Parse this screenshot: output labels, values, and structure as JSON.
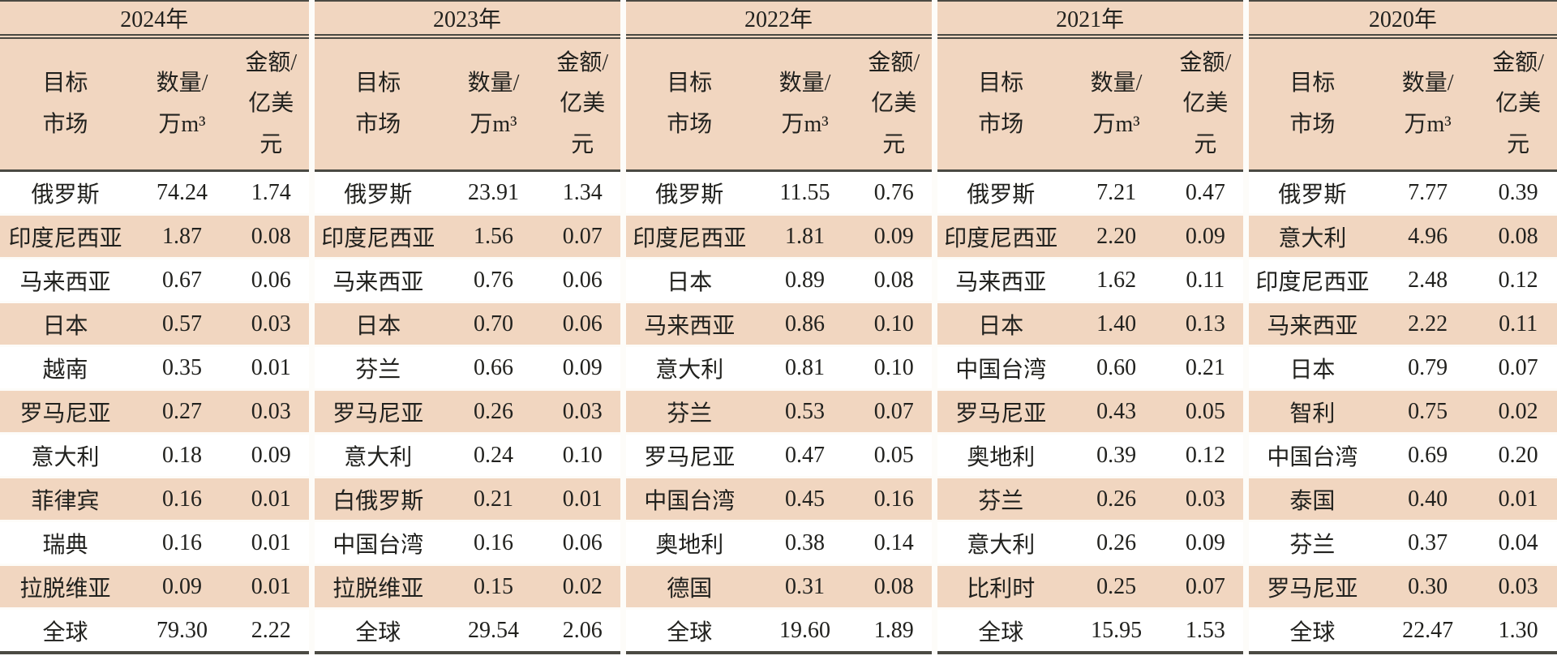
{
  "colors": {
    "stripe_peach": "#f1d6c0",
    "rule_dark": "#4b4a43",
    "row_gutter_white": "#fdfcf9",
    "text": "#21211e"
  },
  "chart_data": {
    "type": "table",
    "years": [
      {
        "label": "2024年",
        "col_headers": {
          "market": "目标\n市场",
          "qty": "数量/\n万m³",
          "amt": "金额/\n亿美\n元"
        },
        "rows": [
          {
            "market": "俄罗斯",
            "qty": "74.24",
            "amt": "1.74"
          },
          {
            "market": "印度尼西亚",
            "qty": "1.87",
            "amt": "0.08"
          },
          {
            "market": "马来西亚",
            "qty": "0.67",
            "amt": "0.06"
          },
          {
            "market": "日本",
            "qty": "0.57",
            "amt": "0.03"
          },
          {
            "market": "越南",
            "qty": "0.35",
            "amt": "0.01"
          },
          {
            "market": "罗马尼亚",
            "qty": "0.27",
            "amt": "0.03"
          },
          {
            "market": "意大利",
            "qty": "0.18",
            "amt": "0.09"
          },
          {
            "market": "菲律宾",
            "qty": "0.16",
            "amt": "0.01"
          },
          {
            "market": "瑞典",
            "qty": "0.16",
            "amt": "0.01"
          },
          {
            "market": "拉脱维亚",
            "qty": "0.09",
            "amt": "0.01"
          },
          {
            "market": "全球",
            "qty": "79.30",
            "amt": "2.22"
          }
        ]
      },
      {
        "label": "2023年",
        "col_headers": {
          "market": "目标\n市场",
          "qty": "数量/\n万m³",
          "amt": "金额/\n亿美\n元"
        },
        "rows": [
          {
            "market": "俄罗斯",
            "qty": "23.91",
            "amt": "1.34"
          },
          {
            "market": "印度尼西亚",
            "qty": "1.56",
            "amt": "0.07"
          },
          {
            "market": "马来西亚",
            "qty": "0.76",
            "amt": "0.06"
          },
          {
            "market": "日本",
            "qty": "0.70",
            "amt": "0.06"
          },
          {
            "market": "芬兰",
            "qty": "0.66",
            "amt": "0.09"
          },
          {
            "market": "罗马尼亚",
            "qty": "0.26",
            "amt": "0.03"
          },
          {
            "market": "意大利",
            "qty": "0.24",
            "amt": "0.10"
          },
          {
            "market": "白俄罗斯",
            "qty": "0.21",
            "amt": "0.01"
          },
          {
            "market": "中国台湾",
            "qty": "0.16",
            "amt": "0.06"
          },
          {
            "market": "拉脱维亚",
            "qty": "0.15",
            "amt": "0.02"
          },
          {
            "market": "全球",
            "qty": "29.54",
            "amt": "2.06"
          }
        ]
      },
      {
        "label": "2022年",
        "col_headers": {
          "market": "目标\n市场",
          "qty": "数量/\n万m³",
          "amt": "金额/\n亿美\n元"
        },
        "rows": [
          {
            "market": "俄罗斯",
            "qty": "11.55",
            "amt": "0.76"
          },
          {
            "market": "印度尼西亚",
            "qty": "1.81",
            "amt": "0.09"
          },
          {
            "market": "日本",
            "qty": "0.89",
            "amt": "0.08"
          },
          {
            "market": "马来西亚",
            "qty": "0.86",
            "amt": "0.10"
          },
          {
            "market": "意大利",
            "qty": "0.81",
            "amt": "0.10"
          },
          {
            "market": "芬兰",
            "qty": "0.53",
            "amt": "0.07"
          },
          {
            "market": "罗马尼亚",
            "qty": "0.47",
            "amt": "0.05"
          },
          {
            "market": "中国台湾",
            "qty": "0.45",
            "amt": "0.16"
          },
          {
            "market": "奥地利",
            "qty": "0.38",
            "amt": "0.14"
          },
          {
            "market": "德国",
            "qty": "0.31",
            "amt": "0.08"
          },
          {
            "market": "全球",
            "qty": "19.60",
            "amt": "1.89"
          }
        ]
      },
      {
        "label": "2021年",
        "col_headers": {
          "market": "目标\n市场",
          "qty": "数量/\n万m³",
          "amt": "金额/\n亿美\n元"
        },
        "rows": [
          {
            "market": "俄罗斯",
            "qty": "7.21",
            "amt": "0.47"
          },
          {
            "market": "印度尼西亚",
            "qty": "2.20",
            "amt": "0.09"
          },
          {
            "market": "马来西亚",
            "qty": "1.62",
            "amt": "0.11"
          },
          {
            "market": "日本",
            "qty": "1.40",
            "amt": "0.13"
          },
          {
            "market": "中国台湾",
            "qty": "0.60",
            "amt": "0.21"
          },
          {
            "market": "罗马尼亚",
            "qty": "0.43",
            "amt": "0.05"
          },
          {
            "market": "奥地利",
            "qty": "0.39",
            "amt": "0.12"
          },
          {
            "market": "芬兰",
            "qty": "0.26",
            "amt": "0.03"
          },
          {
            "market": "意大利",
            "qty": "0.26",
            "amt": "0.09"
          },
          {
            "market": "比利时",
            "qty": "0.25",
            "amt": "0.07"
          },
          {
            "market": "全球",
            "qty": "15.95",
            "amt": "1.53"
          }
        ]
      },
      {
        "label": "2020年",
        "col_headers": {
          "market": "目标\n市场",
          "qty": "数量/\n万m³",
          "amt": "金额/\n亿美\n元"
        },
        "rows": [
          {
            "market": "俄罗斯",
            "qty": "7.77",
            "amt": "0.39"
          },
          {
            "market": "意大利",
            "qty": "4.96",
            "amt": "0.08"
          },
          {
            "market": "印度尼西亚",
            "qty": "2.48",
            "amt": "0.12"
          },
          {
            "market": "马来西亚",
            "qty": "2.22",
            "amt": "0.11"
          },
          {
            "market": "日本",
            "qty": "0.79",
            "amt": "0.07"
          },
          {
            "market": "智利",
            "qty": "0.75",
            "amt": "0.02"
          },
          {
            "market": "中国台湾",
            "qty": "0.69",
            "amt": "0.20"
          },
          {
            "market": "泰国",
            "qty": "0.40",
            "amt": "0.01"
          },
          {
            "market": "芬兰",
            "qty": "0.37",
            "amt": "0.04"
          },
          {
            "market": "罗马尼亚",
            "qty": "0.30",
            "amt": "0.03"
          },
          {
            "market": "全球",
            "qty": "22.47",
            "amt": "1.30"
          }
        ]
      }
    ]
  }
}
